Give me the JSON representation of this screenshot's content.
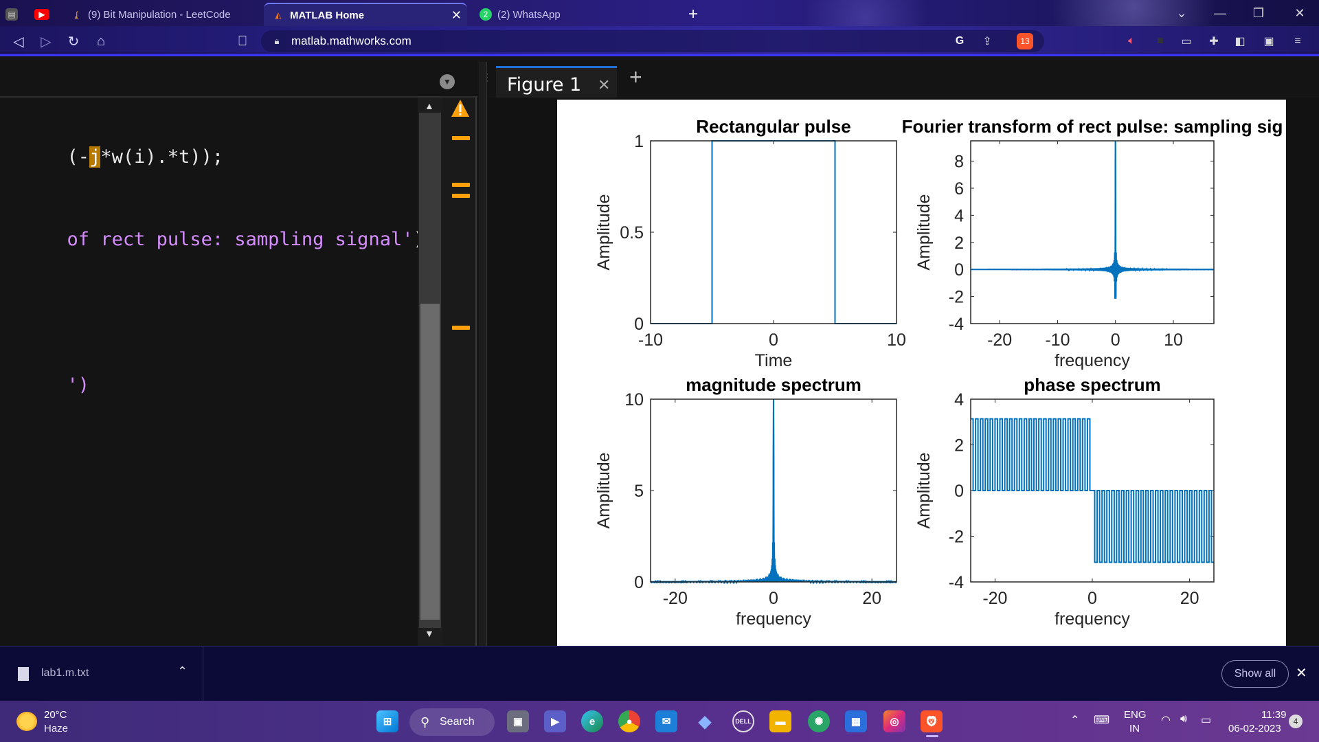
{
  "browser": {
    "tabs": [
      {
        "title": "(9) Bit Manipulation - LeetCode",
        "active": false
      },
      {
        "title": "MATLAB Home",
        "active": true
      },
      {
        "title": "(2) WhatsApp",
        "active": false
      }
    ],
    "whatsapp_badge": "2",
    "url": "matlab.mathworks.com",
    "brave_badge": "13"
  },
  "editor": {
    "lines": [
      {
        "parts": [
          {
            "t": "(-",
            "c": "p"
          },
          {
            "t": "j",
            "c": "j"
          },
          {
            "t": "*w(i).*t));",
            "c": "p"
          }
        ]
      },
      {
        "parts": [
          {
            "t": "of rect pulse: sampling signal'",
            "c": "s"
          },
          {
            "t": ")",
            "c": "p"
          }
        ]
      },
      {
        "parts": [
          {
            "t": "')",
            "c": "s"
          }
        ]
      }
    ]
  },
  "figure_tab": {
    "title": "Figure 1"
  },
  "chart_data": [
    {
      "type": "line",
      "title": "Rectangular pulse",
      "xlabel": "Time",
      "ylabel": "Amplitude",
      "xlim": [
        -10,
        10
      ],
      "ylim": [
        0,
        1
      ],
      "xticks": [
        "-10",
        "0",
        "10"
      ],
      "yticks": [
        "0",
        "0.5",
        "1"
      ],
      "color": "#0072BD",
      "series": [
        {
          "x": [
            -10,
            -5,
            -5,
            5,
            5,
            10
          ],
          "y": [
            0,
            0,
            1,
            1,
            0,
            0
          ]
        }
      ]
    },
    {
      "type": "line",
      "title": "Fourier transform of rect pulse: sampling sig",
      "xlabel": "frequency",
      "ylabel": "Amplitude",
      "xlim": [
        -25,
        17
      ],
      "ylim": [
        -4,
        9.5
      ],
      "xticks": [
        "-20",
        "-10",
        "0",
        "10"
      ],
      "yticks": [
        "-4",
        "-2",
        "0",
        "2",
        "4",
        "6",
        "8"
      ],
      "color": "#0072BD",
      "series": [
        {
          "function": "10*sinc(10*f)",
          "fmin": -25,
          "fmax": 17,
          "approx": true
        }
      ]
    },
    {
      "type": "line",
      "title": "magnitude spectrum",
      "xlabel": "frequency",
      "ylabel": "Amplitude",
      "xlim": [
        -25,
        25
      ],
      "ylim": [
        0,
        10
      ],
      "xticks": [
        "-20",
        "0",
        "20"
      ],
      "yticks": [
        "0",
        "5",
        "10"
      ],
      "color": "#0072BD",
      "series": [
        {
          "function": "abs(10*sinc(10*f))",
          "fmin": -25,
          "fmax": 25,
          "approx": true
        }
      ]
    },
    {
      "type": "line",
      "title": "phase spectrum",
      "xlabel": "frequency",
      "ylabel": "Amplitude",
      "xlim": [
        -25,
        25
      ],
      "ylim": [
        -4,
        4
      ],
      "xticks": [
        "-20",
        "0",
        "20"
      ],
      "yticks": [
        "-4",
        "-2",
        "0",
        "2",
        "4"
      ],
      "color": "#0072BD",
      "series": [
        {
          "function": "angle(10*sinc(10*f)*exp(-j*w*5))",
          "levels": [
            3.14,
            0,
            -3.14
          ],
          "approx": true
        }
      ]
    }
  ],
  "downloads": {
    "file": "lab1.m.txt",
    "show_all": "Show all"
  },
  "taskbar": {
    "temperature": "20°C",
    "weather": "Haze",
    "search": "Search",
    "lang_line1": "ENG",
    "lang_line2": "IN",
    "time": "11:39",
    "date": "06-02-2023",
    "notifications": "4"
  }
}
